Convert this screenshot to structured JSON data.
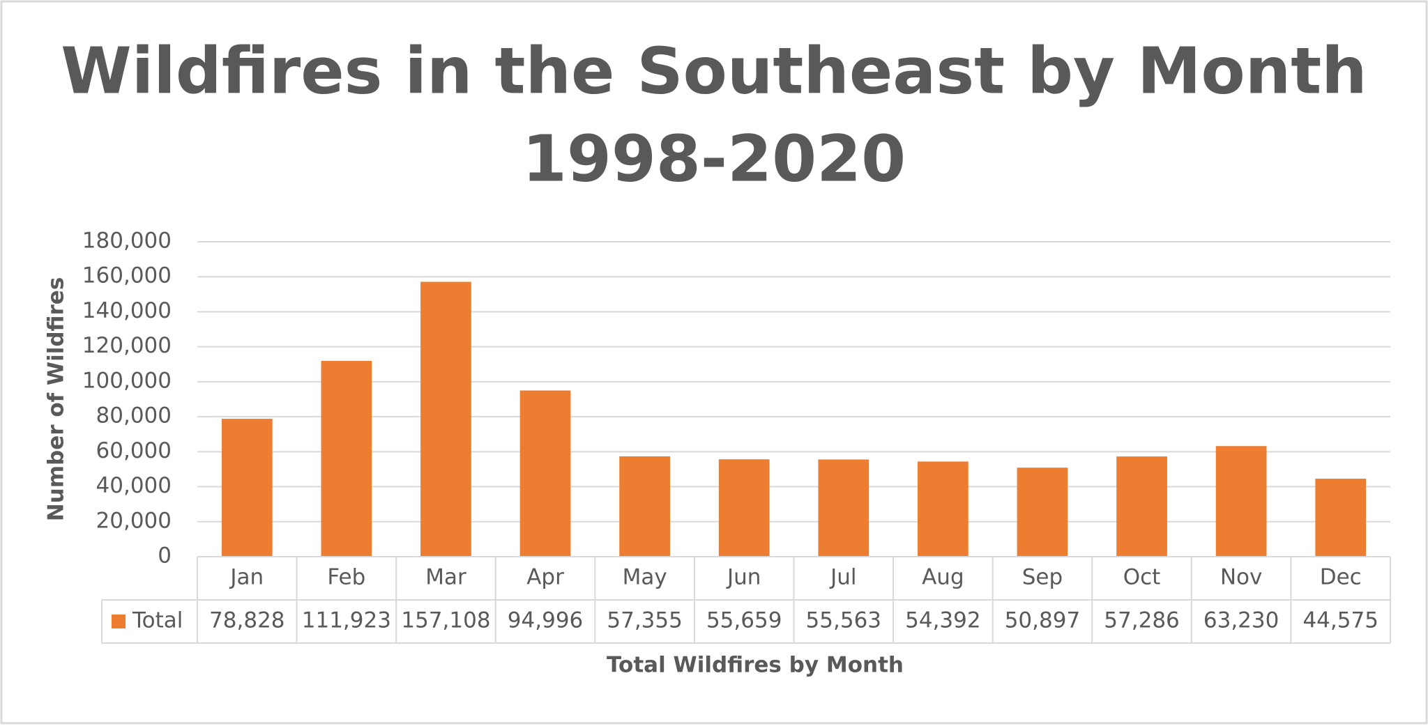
{
  "chart_data": {
    "type": "bar",
    "title": "Wildfires in the Southeast by Month",
    "subtitle": "1998-2020",
    "x_label": "Total Wildfires by Month",
    "y_label": "Number of Wildfires",
    "categories": [
      "Jan",
      "Feb",
      "Mar",
      "Apr",
      "May",
      "Jun",
      "Jul",
      "Aug",
      "Sep",
      "Oct",
      "Nov",
      "Dec"
    ],
    "series": [
      {
        "name": "Total",
        "color": "#ed7d31",
        "values": [
          78828,
          111923,
          157108,
          94996,
          57355,
          55659,
          55563,
          54392,
          50897,
          57286,
          63230,
          44575
        ],
        "value_labels": [
          "78,828",
          "111,923",
          "157,108",
          "94,996",
          "57,355",
          "55,659",
          "55,563",
          "54,392",
          "50,897",
          "57,286",
          "63,230",
          "44,575"
        ]
      }
    ],
    "ylim": [
      0,
      180000
    ],
    "yticks": [
      0,
      {
        "value": 20000,
        "label": "20,000"
      },
      {
        "value": 40000,
        "label": "40,000"
      },
      {
        "value": 60000,
        "label": "60,000"
      },
      {
        "value": 80000,
        "label": "80,000"
      },
      {
        "value": 100000,
        "label": "100,000"
      },
      {
        "value": 120000,
        "label": "120,000"
      },
      {
        "value": 140000,
        "label": "140,000"
      },
      {
        "value": 160000,
        "label": "160,000"
      },
      {
        "value": 180000,
        "label": "180,000"
      }
    ],
    "grid": true
  }
}
